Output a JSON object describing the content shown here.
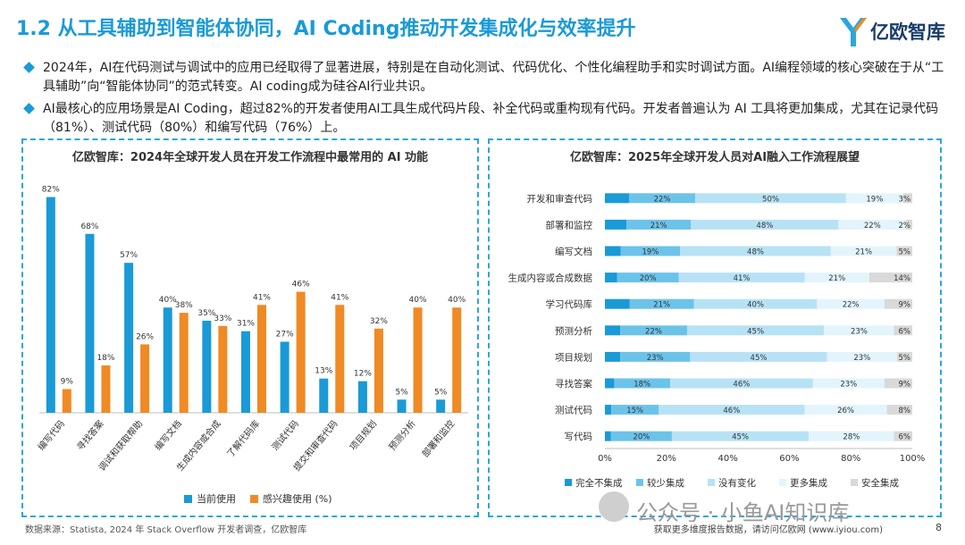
{
  "header": {
    "title": "1.2 从工具辅助到智能体协同，AI Coding推动开发集成化与效率提升",
    "logo_text": "亿欧智库"
  },
  "bullets": [
    "2024年，AI在代码测试与调试中的应用已经取得了显著进展，特别是在自动化测试、代码优化、个性化编程助手和实时调试方面。AI编程领域的核心突破在于从“工具辅助”向“智能体协同”的范式转变。AI coding成为硅谷AI行业共识。",
    "AI最核心的应用场景是AI Coding，超过82%的开发者使用AI工具生成代码片段、补全代码或重构现有代码。开发者普遍认为 AI 工具将更加集成，尤其在记录代码（81%）、测试代码（80%）和编写代码（76%）上。"
  ],
  "colors": {
    "accent": "#1a9ad6",
    "current_use": "#1a9ad6",
    "interested": "#f08a24",
    "none": "#1a9ad6",
    "less": "#6cc3ea",
    "same": "#b7e2f6",
    "more": "#e3f4fc",
    "full": "#d9d9d9"
  },
  "chart_data": [
    {
      "type": "bar",
      "title": "亿欧智库：2024年全球开发人员在开发工作流程中最常用的 AI 功能",
      "categories": [
        "编写代码",
        "寻找答案",
        "调试和获取帮助",
        "编写文档",
        "生成内容或合成",
        "了解代码库",
        "测试代码",
        "提交和审查代码",
        "项目规划",
        "预测分析",
        "部署和监控"
      ],
      "series": [
        {
          "name": "当前使用",
          "values": [
            82,
            68,
            57,
            40,
            35,
            31,
            27,
            13,
            12,
            5,
            5
          ]
        },
        {
          "name": "感兴趣使用 (%)",
          "values": [
            9,
            18,
            26,
            38,
            33,
            41,
            46,
            41,
            32,
            40,
            40
          ]
        }
      ],
      "value_suffix": "%",
      "ylim": [
        0,
        90
      ],
      "grid": false,
      "legend": "bottom"
    },
    {
      "type": "bar",
      "orientation": "horizontal-stacked-100",
      "title": "亿欧智库：2025年全球开发人员对AI融入工作流程展望",
      "categories": [
        "开发和审查代码",
        "部署和监控",
        "编写文档",
        "生成内容或合成数据",
        "学习代码库",
        "预测分析",
        "项目规划",
        "寻找答案",
        "测试代码",
        "写代码"
      ],
      "series": [
        {
          "name": "完全不集成",
          "values": [
            8,
            7,
            5,
            4,
            8,
            5,
            5,
            3,
            2,
            2
          ],
          "labels": [
            "",
            "",
            "",
            "",
            "",
            "",
            "",
            "",
            "",
            ""
          ]
        },
        {
          "name": "较少集成",
          "values": [
            22,
            21,
            19,
            20,
            21,
            22,
            23,
            18,
            15,
            20
          ],
          "labels": [
            "22%",
            "21%",
            "19%",
            "20%",
            "21%",
            "22%",
            "23%",
            "18%",
            "15%",
            "20%"
          ]
        },
        {
          "name": "没有变化",
          "values": [
            50,
            48,
            48,
            41,
            40,
            45,
            45,
            46,
            46,
            45
          ],
          "labels": [
            "50%",
            "48%",
            "48%",
            "41%",
            "40%",
            "45%",
            "45%",
            "46%",
            "46%",
            "45%"
          ]
        },
        {
          "name": "更多集成",
          "values": [
            19,
            22,
            21,
            21,
            22,
            23,
            23,
            23,
            26,
            28
          ],
          "labels": [
            "19%",
            "22%",
            "21%",
            "21%",
            "22%",
            "23%",
            "23%",
            "23%",
            "26%",
            "28%"
          ]
        },
        {
          "name": "安全集成",
          "values": [
            3,
            2,
            5,
            14,
            9,
            6,
            5,
            9,
            8,
            6
          ],
          "labels": [
            "3%",
            "2%",
            "5%",
            "14%",
            "9%",
            "6%",
            "5%",
            "9%",
            "8%",
            "6%"
          ]
        }
      ],
      "xticks": [
        "0%",
        "20%",
        "40%",
        "60%",
        "80%",
        "100%"
      ],
      "xlim": [
        0,
        100
      ],
      "legend": "bottom"
    }
  ],
  "footer": {
    "source": "数据来源：Statista, 2024 年 Stack Overflow 开发者调查，亿欧智库",
    "watermark": "公众号 · 小鱼AI知识库",
    "note": "获取更多维度报告数据，请访问亿欧网 (www.iyiou.com)",
    "page": "8"
  }
}
